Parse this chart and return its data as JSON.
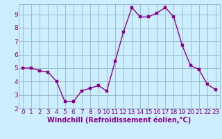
{
  "x": [
    0,
    1,
    2,
    3,
    4,
    5,
    6,
    7,
    8,
    9,
    10,
    11,
    12,
    13,
    14,
    15,
    16,
    17,
    18,
    19,
    20,
    21,
    22,
    23
  ],
  "y": [
    5.0,
    5.0,
    4.8,
    4.7,
    4.0,
    2.5,
    2.5,
    3.3,
    3.5,
    3.7,
    3.3,
    5.5,
    7.7,
    9.5,
    8.8,
    8.8,
    9.1,
    9.5,
    8.8,
    6.7,
    5.2,
    4.9,
    3.8,
    3.4
  ],
  "line_color": "#880088",
  "marker_color": "#880088",
  "bg_color": "#cceeff",
  "grid_color": "#99bbcc",
  "xlabel": "Windchill (Refroidissement éolien,°C)",
  "xlim": [
    -0.5,
    23.5
  ],
  "ylim": [
    2.0,
    9.75
  ],
  "yticks": [
    2,
    3,
    4,
    5,
    6,
    7,
    8,
    9
  ],
  "xticks": [
    0,
    1,
    2,
    3,
    4,
    5,
    6,
    7,
    8,
    9,
    10,
    11,
    12,
    13,
    14,
    15,
    16,
    17,
    18,
    19,
    20,
    21,
    22,
    23
  ],
  "tick_label_color": "#880088",
  "axis_label_color": "#880088",
  "font_size_tick": 6.5,
  "font_size_xlabel": 7.0
}
